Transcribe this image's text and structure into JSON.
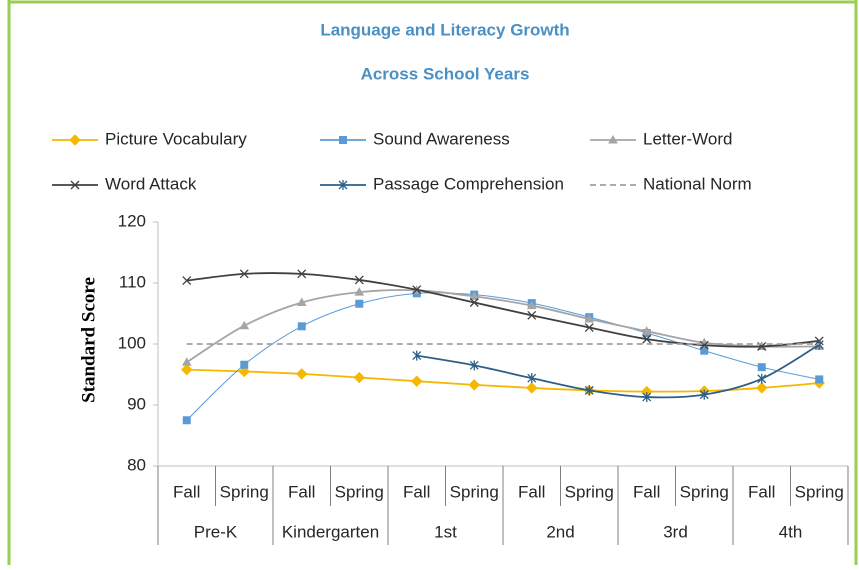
{
  "chart_data": {
    "type": "line",
    "title": "Language and Literacy Growth",
    "subtitle": "Across School Years",
    "y_label": "Standard Score",
    "categories": [
      "Fall",
      "Spring",
      "Fall",
      "Spring",
      "Fall",
      "Spring",
      "Fall",
      "Spring",
      "Fall",
      "Spring",
      "Fall",
      "Spring"
    ],
    "groups": [
      "Pre-K",
      "Kindergarten",
      "1st",
      "2nd",
      "3rd",
      "4th"
    ],
    "ylim": [
      80,
      120
    ],
    "yticks": [
      80,
      90,
      100,
      110,
      120
    ],
    "series": [
      {
        "name": "Picture Vocabulary",
        "color": "#f5b800",
        "marker": "diamond",
        "values": [
          95.8,
          95.5,
          95.1,
          94.5,
          93.9,
          93.3,
          92.8,
          92.4,
          92.2,
          92.3,
          92.8,
          93.6
        ]
      },
      {
        "name": "Sound Awareness",
        "color": "#5b9bd5",
        "marker": "square",
        "values": [
          87.5,
          96.6,
          102.9,
          106.6,
          108.3,
          108.1,
          106.7,
          104.4,
          101.8,
          98.9,
          96.2,
          94.2
        ]
      },
      {
        "name": "Letter-Word",
        "color": "#a5a5a5",
        "marker": "triangle",
        "values": [
          97.0,
          103.0,
          106.8,
          108.5,
          108.8,
          107.8,
          106.3,
          104.1,
          102.1,
          100.2,
          99.6,
          99.6
        ]
      },
      {
        "name": "Word Attack",
        "color": "#404040",
        "marker": "x",
        "values": [
          110.4,
          111.5,
          111.5,
          110.5,
          108.9,
          106.8,
          104.7,
          102.7,
          100.8,
          99.8,
          99.6,
          100.5
        ]
      },
      {
        "name": "Passage Comprehension",
        "color": "#2e5f8a",
        "marker": "star",
        "values": [
          null,
          null,
          null,
          null,
          98.1,
          96.5,
          94.4,
          92.4,
          91.3,
          91.7,
          94.3,
          99.9
        ]
      },
      {
        "name": "National Norm",
        "color": "#a0a0a0",
        "marker": "none",
        "dashed": true,
        "values": [
          100,
          100,
          100,
          100,
          100,
          100,
          100,
          100,
          100,
          100,
          100,
          100
        ]
      }
    ]
  }
}
